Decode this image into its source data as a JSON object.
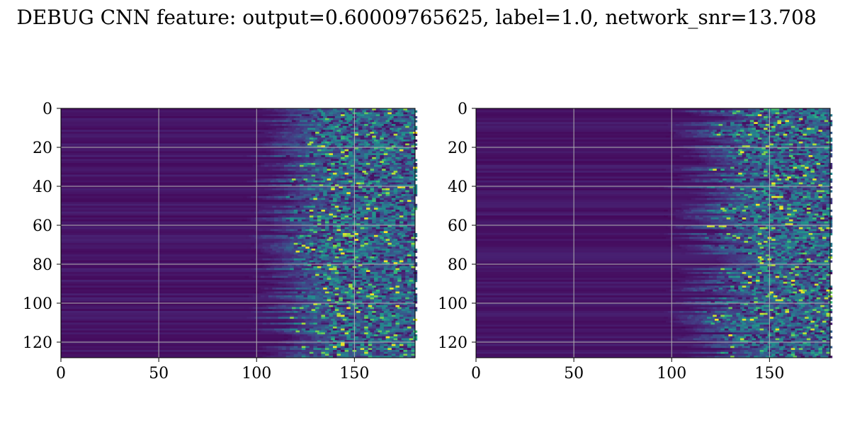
{
  "figure": {
    "title": "DEBUG CNN feature: output=0.60009765625, label=1.0, network_snr=13.708"
  },
  "chart_data": [
    {
      "type": "heatmap",
      "colormap": "viridis",
      "xlim": [
        0,
        181
      ],
      "ylim": [
        128,
        0
      ],
      "x_ticks": [
        "0",
        "50",
        "100",
        "150"
      ],
      "y_ticks": [
        "0",
        "20",
        "40",
        "60",
        "80",
        "100",
        "120"
      ],
      "grid": true,
      "transition_x": 125,
      "transition_jitter": 12,
      "seed": 11
    },
    {
      "type": "heatmap",
      "colormap": "viridis",
      "xlim": [
        0,
        181
      ],
      "ylim": [
        128,
        0
      ],
      "x_ticks": [
        "0",
        "50",
        "100",
        "150"
      ],
      "y_ticks": [
        "0",
        "20",
        "40",
        "60",
        "80",
        "100",
        "120"
      ],
      "grid": true,
      "transition_x": 130,
      "transition_jitter": 16,
      "seed": 29
    }
  ]
}
